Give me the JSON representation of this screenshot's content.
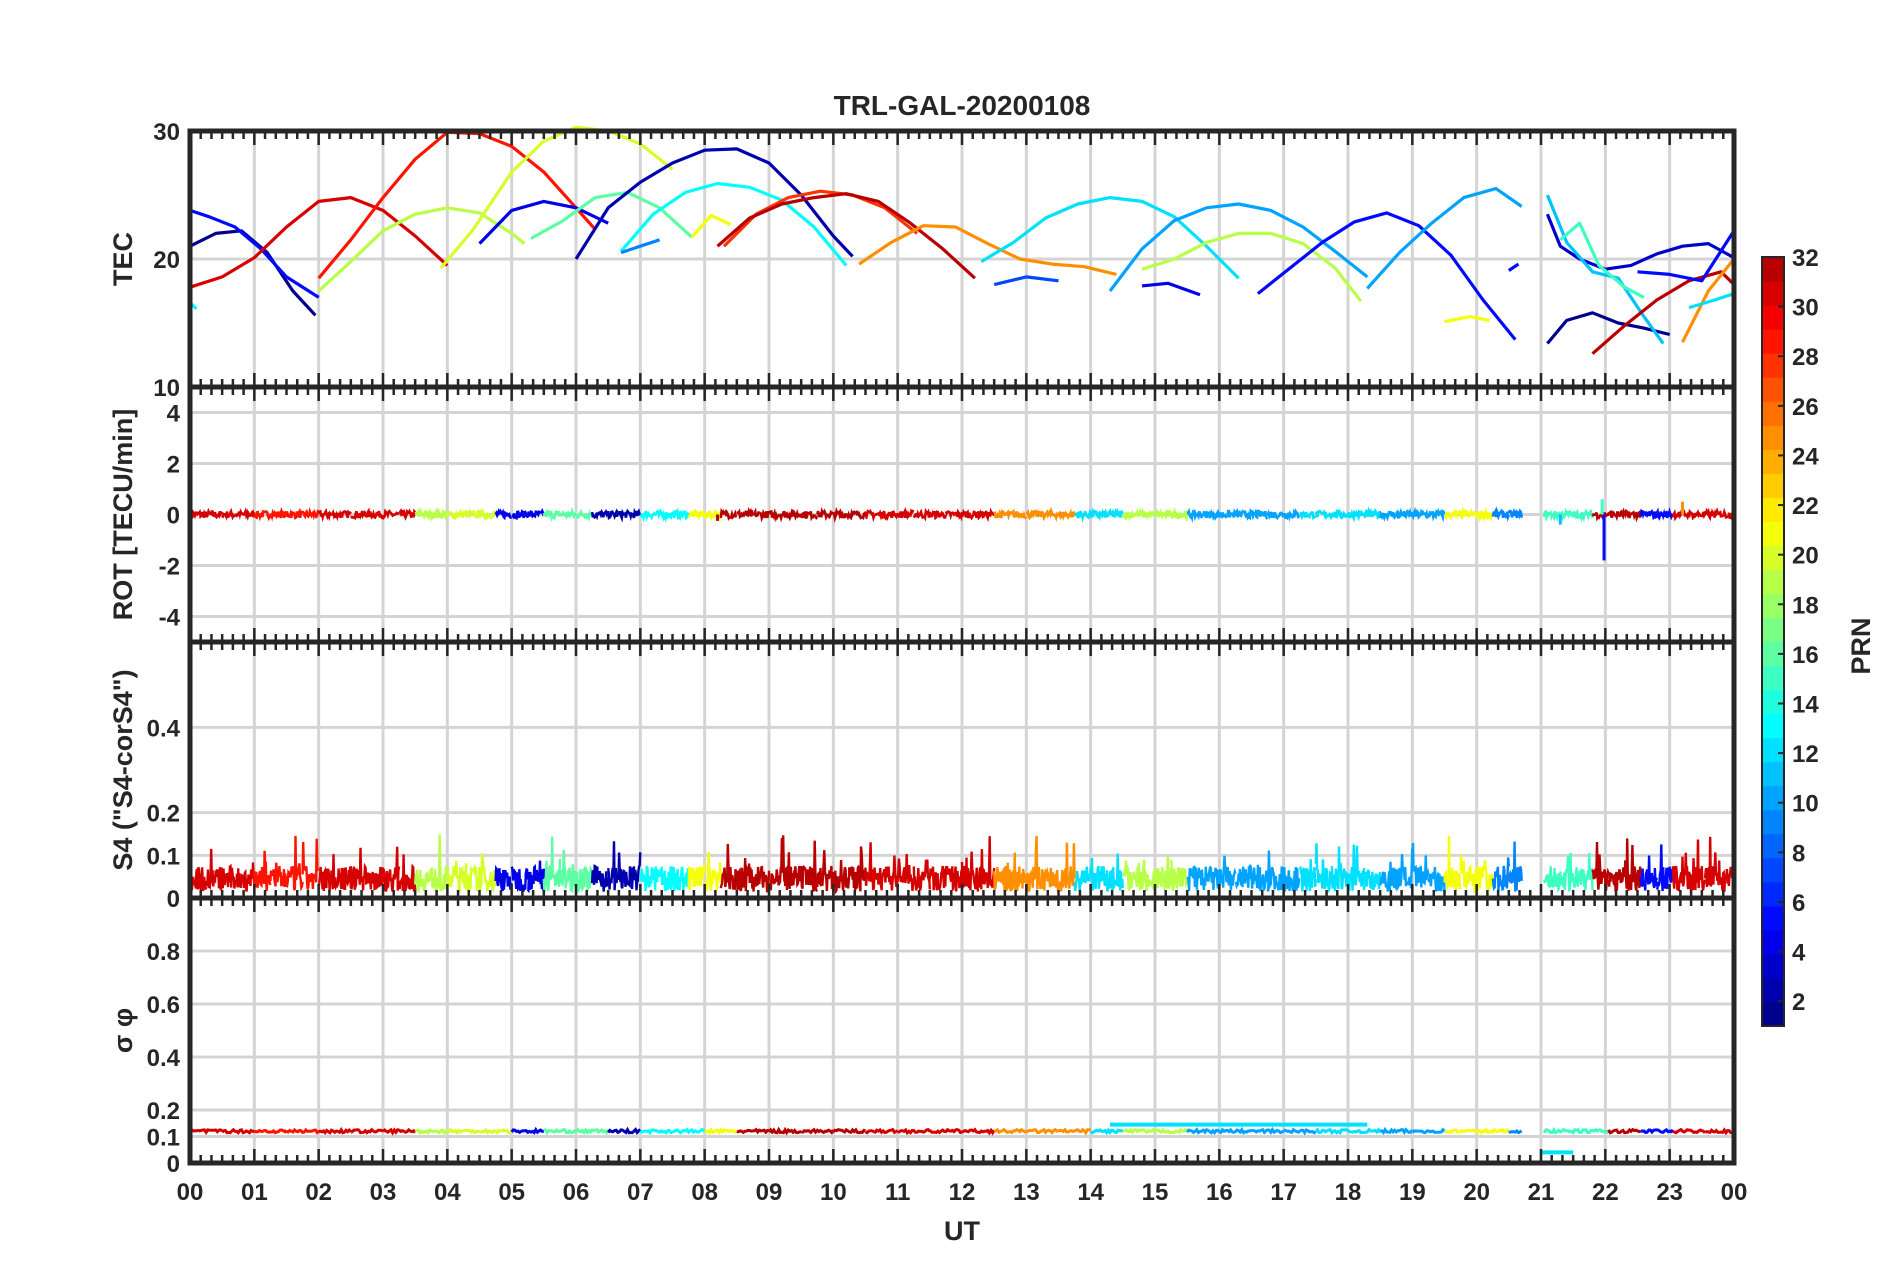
{
  "chart_data": {
    "type": "line",
    "title": "TRL-GAL-20200108",
    "xlabel": "UT",
    "x_ticks": [
      "00",
      "01",
      "02",
      "03",
      "04",
      "05",
      "06",
      "07",
      "08",
      "09",
      "10",
      "11",
      "12",
      "13",
      "14",
      "15",
      "16",
      "17",
      "18",
      "19",
      "20",
      "21",
      "22",
      "23",
      "00"
    ],
    "xlim": [
      0,
      24
    ],
    "colorbar": {
      "label": "PRN",
      "range": [
        1,
        32
      ],
      "ticks": [
        "2",
        "4",
        "6",
        "8",
        "10",
        "12",
        "14",
        "16",
        "18",
        "20",
        "22",
        "24",
        "26",
        "28",
        "30",
        "32"
      ],
      "colors": [
        "#00008f",
        "#0000ad",
        "#0000cc",
        "#0000eb",
        "#000aff",
        "#0029ff",
        "#0047ff",
        "#0066ff",
        "#0085ff",
        "#00a3ff",
        "#00c2ff",
        "#00e0ff",
        "#00ffff",
        "#1fffe0",
        "#3dffc2",
        "#5cffa3",
        "#7aff85",
        "#99ff66",
        "#b8ff47",
        "#d6ff29",
        "#f5ff0a",
        "#ffeb00",
        "#ffcc00",
        "#ffad00",
        "#ff8f00",
        "#ff7000",
        "#ff5200",
        "#ff3300",
        "#ff1400",
        "#f50000",
        "#d60000",
        "#b80000"
      ]
    },
    "panels": [
      {
        "name": "tec",
        "ylabel": "TEC",
        "ylim": [
          10,
          30
        ],
        "yticks": [
          "10",
          "20",
          "30"
        ],
        "series": [
          {
            "prn": 1,
            "x": [
              0,
              0.4,
              0.8,
              1.2,
              1.6,
              1.95
            ],
            "y": [
              21.0,
              22.0,
              22.2,
              20.5,
              17.5,
              15.6
            ]
          },
          {
            "prn": 5,
            "x": [
              0,
              0.3,
              0.7,
              1.1,
              1.5,
              2.0
            ],
            "y": [
              23.8,
              23.3,
              22.5,
              20.8,
              18.6,
              17.0
            ]
          },
          {
            "prn": 13,
            "x": [
              0,
              0.1
            ],
            "y": [
              16.6,
              16.1
            ]
          },
          {
            "prn": 31,
            "x": [
              0,
              0.5,
              1.0,
              1.5,
              2.0,
              2.5,
              3.0,
              3.5,
              4.0
            ],
            "y": [
              17.8,
              18.6,
              20.1,
              22.5,
              24.5,
              24.8,
              23.8,
              21.8,
              19.5
            ]
          },
          {
            "prn": 29,
            "x": [
              2.0,
              2.5,
              3.0,
              3.5,
              4.0,
              4.5,
              5.0,
              5.5,
              6.0,
              6.3
            ],
            "y": [
              18.5,
              21.5,
              24.8,
              27.8,
              29.9,
              29.8,
              28.8,
              26.8,
              24.0,
              22.3
            ]
          },
          {
            "prn": 19,
            "x": [
              2.0,
              2.5,
              3.0,
              3.5,
              4.0,
              4.5,
              5.0,
              5.2
            ],
            "y": [
              17.5,
              19.8,
              22.2,
              23.5,
              24.0,
              23.6,
              22.0,
              21.2
            ]
          },
          {
            "prn": 20,
            "x": [
              3.9,
              4.4,
              5.0,
              5.5,
              6.0,
              6.5,
              7.0,
              7.5
            ],
            "y": [
              19.3,
              22.3,
              26.8,
              29.2,
              30.3,
              30.0,
              29.0,
              27.0
            ]
          },
          {
            "prn": 4,
            "x": [
              4.5,
              5.0,
              5.5,
              6.0,
              6.5
            ],
            "y": [
              21.2,
              23.8,
              24.5,
              24.0,
              22.8
            ]
          },
          {
            "prn": 16,
            "x": [
              5.3,
              5.8,
              6.3,
              6.8,
              7.3,
              7.8
            ],
            "y": [
              21.6,
              23.0,
              24.8,
              25.2,
              24.0,
              21.7
            ]
          },
          {
            "prn": 2,
            "x": [
              6.0,
              6.5,
              7.0,
              7.5,
              8.0,
              8.5,
              9.0,
              9.5,
              10.0,
              10.3
            ],
            "y": [
              20.0,
              24.0,
              26.0,
              27.5,
              28.5,
              28.6,
              27.5,
              25.0,
              21.8,
              20.2
            ]
          },
          {
            "prn": 13,
            "x": [
              6.7,
              7.2,
              7.7,
              8.2,
              8.7,
              9.2,
              9.7,
              10.2
            ],
            "y": [
              20.6,
              23.5,
              25.2,
              25.9,
              25.6,
              24.6,
              22.5,
              19.5
            ]
          },
          {
            "prn": 9,
            "x": [
              6.7,
              7.3
            ],
            "y": [
              20.5,
              21.5
            ]
          },
          {
            "prn": 21,
            "x": [
              7.8,
              8.1,
              8.4
            ],
            "y": [
              21.7,
              23.4,
              22.7
            ]
          },
          {
            "prn": 28,
            "x": [
              8.3,
              8.8,
              9.3,
              9.8,
              10.3,
              10.8,
              11.3
            ],
            "y": [
              21.0,
              23.5,
              24.8,
              25.3,
              25.0,
              24.0,
              22.0
            ]
          },
          {
            "prn": 32,
            "x": [
              8.2,
              8.7,
              9.2,
              9.7,
              10.2,
              10.7,
              11.2,
              11.7,
              12.2
            ],
            "y": [
              21.0,
              23.2,
              24.3,
              24.8,
              25.1,
              24.5,
              22.8,
              20.8,
              18.5
            ]
          },
          {
            "prn": 25,
            "x": [
              10.4,
              10.9,
              11.4,
              11.9,
              12.4,
              12.9,
              13.4,
              13.9,
              14.4
            ],
            "y": [
              19.6,
              21.3,
              22.6,
              22.5,
              21.2,
              20.0,
              19.6,
              19.4,
              18.8
            ]
          },
          {
            "prn": 12,
            "x": [
              12.3,
              12.8,
              13.3,
              13.8,
              14.3,
              14.8,
              15.3,
              15.8,
              16.3
            ],
            "y": [
              19.8,
              21.3,
              23.2,
              24.3,
              24.8,
              24.5,
              23.3,
              21.0,
              18.5
            ]
          },
          {
            "prn": 7,
            "x": [
              12.5,
              13.0,
              13.5
            ],
            "y": [
              18.0,
              18.6,
              18.3
            ]
          },
          {
            "prn": 10,
            "x": [
              14.3,
              14.8,
              15.3,
              15.8,
              16.3,
              16.8,
              17.3,
              17.8,
              18.3
            ],
            "y": [
              17.5,
              20.8,
              23.0,
              24.0,
              24.3,
              23.8,
              22.5,
              20.6,
              18.6
            ]
          },
          {
            "prn": 19,
            "x": [
              14.8,
              15.3,
              15.8,
              16.3,
              16.8,
              17.3,
              17.8,
              18.2
            ],
            "y": [
              19.2,
              20.0,
              21.3,
              22.0,
              22.0,
              21.2,
              19.3,
              16.7
            ]
          },
          {
            "prn": 4,
            "x": [
              14.8,
              15.2,
              15.7
            ],
            "y": [
              17.9,
              18.1,
              17.2
            ]
          },
          {
            "prn": 5,
            "x": [
              16.6,
              17.1,
              17.6,
              18.1,
              18.6,
              19.1,
              19.6,
              20.1,
              20.6
            ],
            "y": [
              17.3,
              19.3,
              21.3,
              22.9,
              23.6,
              22.6,
              20.3,
              16.8,
              13.7
            ]
          },
          {
            "prn": 10,
            "x": [
              18.3,
              18.8,
              19.3,
              19.8,
              20.3,
              20.7
            ],
            "y": [
              17.7,
              20.5,
              22.8,
              24.8,
              25.5,
              24.1
            ]
          },
          {
            "prn": 21,
            "x": [
              19.5,
              19.9,
              20.2
            ],
            "y": [
              15.1,
              15.5,
              15.2
            ]
          },
          {
            "prn": 5,
            "x": [
              20.5,
              20.65
            ],
            "y": [
              19.1,
              19.6
            ]
          },
          {
            "prn": 3,
            "x": [
              21.1,
              21.3,
              21.6,
              22.0,
              22.4,
              22.8,
              23.2,
              23.6,
              24.0
            ],
            "y": [
              23.5,
              21.0,
              20.0,
              19.2,
              19.5,
              20.4,
              21.0,
              21.2,
              20.1
            ]
          },
          {
            "prn": 1,
            "x": [
              21.1,
              21.4,
              21.8,
              22.2,
              22.6,
              23.0
            ],
            "y": [
              13.4,
              15.2,
              15.8,
              15.0,
              14.6,
              14.1
            ]
          },
          {
            "prn": 11,
            "x": [
              21.1,
              21.4,
              21.8,
              22.2,
              22.6,
              22.9
            ],
            "y": [
              25.0,
              21.3,
              19.0,
              18.5,
              15.5,
              13.4
            ]
          },
          {
            "prn": 15,
            "x": [
              21.3,
              21.6,
              21.9,
              22.3,
              22.6
            ],
            "y": [
              21.5,
              22.8,
              19.5,
              17.8,
              17.0
            ]
          },
          {
            "prn": 32,
            "x": [
              21.8,
              22.3,
              22.8,
              23.3,
              23.8,
              24.0
            ],
            "y": [
              12.6,
              14.8,
              16.8,
              18.3,
              19.0,
              18.0
            ]
          },
          {
            "prn": 5,
            "x": [
              22.5,
              23.0,
              23.5,
              24.0
            ],
            "y": [
              19.0,
              18.8,
              18.3,
              22.2
            ]
          },
          {
            "prn": 25,
            "x": [
              23.2,
              23.6,
              24.0
            ],
            "y": [
              13.5,
              17.5,
              20.0
            ]
          },
          {
            "prn": 12,
            "x": [
              23.3,
              23.7,
              24.0
            ],
            "y": [
              16.2,
              16.8,
              17.3
            ]
          }
        ]
      },
      {
        "name": "rot",
        "ylabel": "ROT [TECU/min]",
        "ylim": [
          -5,
          5
        ],
        "yticks": [
          "-4",
          "-2",
          "0",
          "2",
          "4"
        ],
        "baseline": 0.0,
        "spikes": [
          {
            "x": 21.98,
            "y": -1.8,
            "prn": 5
          },
          {
            "x": 21.95,
            "y": 0.6,
            "prn": 15
          },
          {
            "x": 23.2,
            "y": 0.5,
            "prn": 25
          },
          {
            "x": 21.3,
            "y": -0.4,
            "prn": 11
          },
          {
            "x": 8.2,
            "y": -0.25,
            "prn": 32
          }
        ]
      },
      {
        "name": "s4",
        "ylabel": "S4 (\"S4-corS4\")",
        "ylim": [
          0,
          0.6
        ],
        "yticks": [
          "0",
          "0.1",
          "0.2",
          "0.4"
        ],
        "baseline": 0.045,
        "noise_max": 0.15
      },
      {
        "name": "sigma_phi",
        "ylabel": "σ φ",
        "ylim": [
          0,
          1.0
        ],
        "yticks": [
          "0",
          "0.1",
          "0.2",
          "0.4",
          "0.6",
          "0.8"
        ],
        "baseline": 0.12,
        "segments": [
          {
            "x0": 14.3,
            "x1": 18.3,
            "y": 0.145,
            "prn": 12
          },
          {
            "x0": 21.0,
            "x1": 21.5,
            "y": 0.04,
            "prn": 12
          }
        ]
      }
    ]
  }
}
